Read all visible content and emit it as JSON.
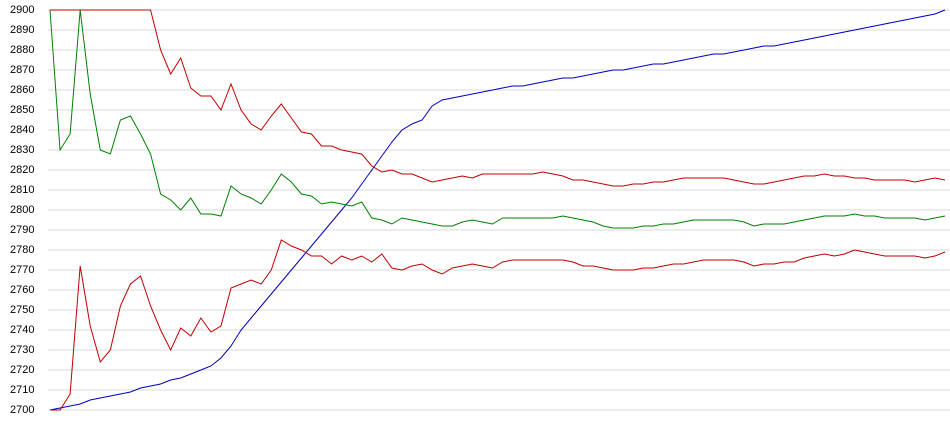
{
  "chart_data": {
    "type": "line",
    "ylim": [
      2700,
      2900
    ],
    "yticks": [
      2700,
      2710,
      2720,
      2730,
      2740,
      2750,
      2760,
      2770,
      2780,
      2790,
      2800,
      2810,
      2820,
      2830,
      2840,
      2850,
      2860,
      2870,
      2880,
      2890,
      2900
    ],
    "grid": true,
    "series": [
      {
        "color": "#0000c0",
        "values": [
          2700,
          2701,
          2702,
          2703,
          2705,
          2706,
          2707,
          2708,
          2709,
          2711,
          2712,
          2713,
          2715,
          2716,
          2718,
          2720,
          2722,
          2726,
          2732,
          2740,
          2746,
          2752,
          2758,
          2764,
          2770,
          2776,
          2782,
          2788,
          2794,
          2800,
          2806,
          2813,
          2820,
          2827,
          2834,
          2840,
          2843,
          2845,
          2852,
          2855,
          2856,
          2857,
          2858,
          2859,
          2860,
          2861,
          2862,
          2862,
          2863,
          2864,
          2865,
          2866,
          2866,
          2867,
          2868,
          2869,
          2870,
          2870,
          2871,
          2872,
          2873,
          2873,
          2874,
          2875,
          2876,
          2877,
          2878,
          2878,
          2879,
          2880,
          2881,
          2882,
          2882,
          2883,
          2884,
          2885,
          2886,
          2887,
          2888,
          2889,
          2890,
          2891,
          2892,
          2893,
          2894,
          2895,
          2896,
          2897,
          2898,
          2900
        ]
      },
      {
        "color": "#c00000",
        "values": [
          2900,
          2900,
          2900,
          2900,
          2900,
          2900,
          2900,
          2900,
          2900,
          2900,
          2900,
          2880,
          2868,
          2876,
          2861,
          2857,
          2857,
          2850,
          2863,
          2850,
          2843,
          2840,
          2847,
          2853,
          2846,
          2839,
          2838,
          2832,
          2832,
          2830,
          2829,
          2828,
          2822,
          2819,
          2820,
          2818,
          2818,
          2816,
          2814,
          2815,
          2816,
          2817,
          2816,
          2818,
          2818,
          2818,
          2818,
          2818,
          2818,
          2819,
          2818,
          2817,
          2815,
          2815,
          2814,
          2813,
          2812,
          2812,
          2813,
          2813,
          2814,
          2814,
          2815,
          2816,
          2816,
          2816,
          2816,
          2816,
          2815,
          2814,
          2813,
          2813,
          2814,
          2815,
          2816,
          2817,
          2817,
          2818,
          2817,
          2817,
          2816,
          2816,
          2815,
          2815,
          2815,
          2815,
          2814,
          2815,
          2816,
          2815
        ]
      },
      {
        "color": "#008000",
        "values": [
          2900,
          2830,
          2838,
          2900,
          2858,
          2830,
          2828,
          2845,
          2847,
          2838,
          2828,
          2808,
          2805,
          2800,
          2806,
          2798,
          2798,
          2797,
          2812,
          2808,
          2806,
          2803,
          2810,
          2818,
          2814,
          2808,
          2807,
          2803,
          2804,
          2803,
          2802,
          2804,
          2796,
          2795,
          2793,
          2796,
          2795,
          2794,
          2793,
          2792,
          2792,
          2794,
          2795,
          2794,
          2793,
          2796,
          2796,
          2796,
          2796,
          2796,
          2796,
          2797,
          2796,
          2795,
          2794,
          2792,
          2791,
          2791,
          2791,
          2792,
          2792,
          2793,
          2793,
          2794,
          2795,
          2795,
          2795,
          2795,
          2795,
          2794,
          2792,
          2793,
          2793,
          2793,
          2794,
          2795,
          2796,
          2797,
          2797,
          2797,
          2798,
          2797,
          2797,
          2796,
          2796,
          2796,
          2796,
          2795,
          2796,
          2797
        ]
      },
      {
        "color": "#c00000",
        "values": [
          2700,
          2700,
          2708,
          2772,
          2742,
          2724,
          2730,
          2752,
          2763,
          2767,
          2752,
          2740,
          2730,
          2741,
          2737,
          2746,
          2739,
          2742,
          2761,
          2763,
          2765,
          2763,
          2770,
          2785,
          2782,
          2780,
          2777,
          2777,
          2773,
          2777,
          2775,
          2777,
          2774,
          2778,
          2771,
          2770,
          2772,
          2773,
          2770,
          2768,
          2771,
          2772,
          2773,
          2772,
          2771,
          2774,
          2775,
          2775,
          2775,
          2775,
          2775,
          2775,
          2774,
          2772,
          2772,
          2771,
          2770,
          2770,
          2770,
          2771,
          2771,
          2772,
          2773,
          2773,
          2774,
          2775,
          2775,
          2775,
          2775,
          2774,
          2772,
          2773,
          2773,
          2774,
          2774,
          2776,
          2777,
          2778,
          2777,
          2778,
          2780,
          2779,
          2778,
          2777,
          2777,
          2777,
          2777,
          2776,
          2777,
          2779
        ]
      }
    ]
  }
}
